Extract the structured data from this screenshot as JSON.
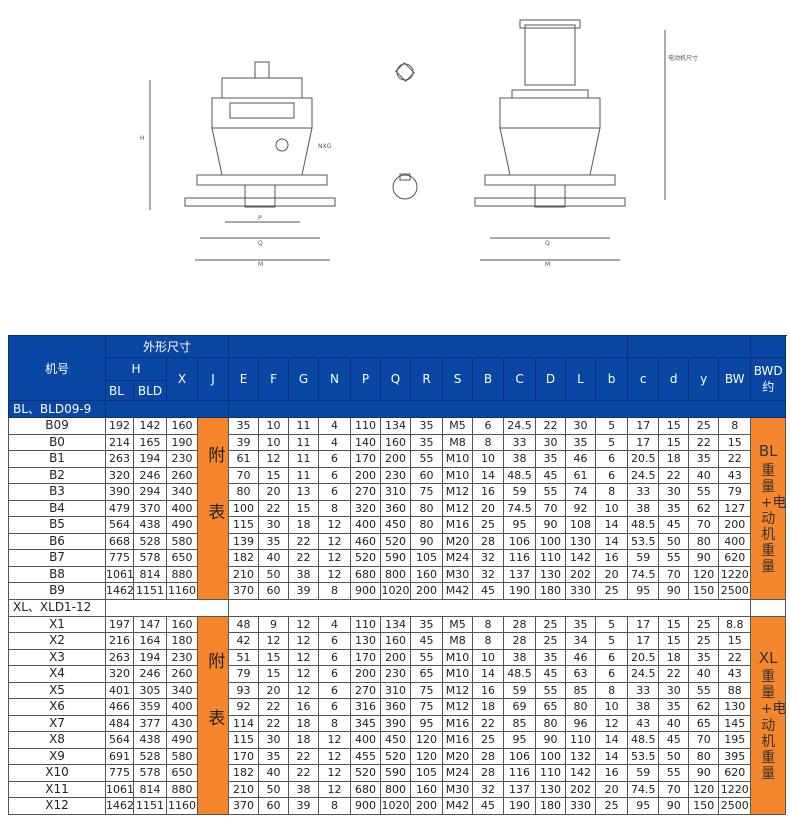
{
  "header": {
    "model": "机号",
    "outline": "外形尺寸",
    "H": "H",
    "BL": "BL",
    "BLD": "BLD",
    "cols": [
      "X",
      "J",
      "E",
      "F",
      "G",
      "N",
      "P",
      "Q",
      "R",
      "S",
      "B",
      "C",
      "D",
      "L",
      "b",
      "c",
      "d",
      "y",
      "BW"
    ],
    "bwd": "BWD",
    "bwd_sub": "约"
  },
  "drawing_labels": {
    "H": "H",
    "E": "E",
    "F": "F",
    "G": "G",
    "NXG": "NXG",
    "P": "P",
    "Q": "Q",
    "M": "M",
    "J": "J",
    "C": "C",
    "D": "D",
    "B": "B",
    "motor_note": "电动机尺寸"
  },
  "fubiao": "附表",
  "sections": [
    {
      "title": "BL、BLD09-9",
      "weight_label": "BL",
      "weight_note": "重量+电动机重量",
      "rows": [
        [
          "B09",
          "192",
          "142",
          "160",
          "35",
          "10",
          "11",
          "4",
          "110",
          "134",
          "35",
          "M5",
          "6",
          "24.5",
          "22",
          "30",
          "5",
          "17",
          "15",
          "25",
          "8"
        ],
        [
          "B0",
          "214",
          "165",
          "190",
          "39",
          "10",
          "11",
          "4",
          "140",
          "160",
          "35",
          "M8",
          "8",
          "33",
          "30",
          "35",
          "5",
          "17",
          "15",
          "22",
          "15"
        ],
        [
          "B1",
          "263",
          "194",
          "230",
          "61",
          "12",
          "11",
          "6",
          "170",
          "200",
          "55",
          "M10",
          "10",
          "38",
          "35",
          "46",
          "6",
          "20.5",
          "18",
          "35",
          "22"
        ],
        [
          "B2",
          "320",
          "246",
          "260",
          "70",
          "15",
          "11",
          "6",
          "200",
          "230",
          "60",
          "M10",
          "14",
          "48.5",
          "45",
          "61",
          "6",
          "24.5",
          "22",
          "40",
          "43"
        ],
        [
          "B3",
          "390",
          "294",
          "340",
          "80",
          "20",
          "13",
          "6",
          "270",
          "310",
          "75",
          "M12",
          "16",
          "59",
          "55",
          "74",
          "8",
          "33",
          "30",
          "55",
          "79"
        ],
        [
          "B4",
          "479",
          "370",
          "400",
          "100",
          "22",
          "15",
          "8",
          "320",
          "360",
          "80",
          "M12",
          "20",
          "74.5",
          "70",
          "92",
          "10",
          "38",
          "35",
          "62",
          "127"
        ],
        [
          "B5",
          "564",
          "438",
          "490",
          "115",
          "30",
          "18",
          "12",
          "400",
          "450",
          "80",
          "M16",
          "25",
          "95",
          "90",
          "108",
          "14",
          "48.5",
          "45",
          "70",
          "200"
        ],
        [
          "B6",
          "668",
          "528",
          "580",
          "139",
          "35",
          "22",
          "12",
          "460",
          "520",
          "90",
          "M20",
          "28",
          "106",
          "100",
          "130",
          "14",
          "53.5",
          "50",
          "80",
          "400"
        ],
        [
          "B7",
          "775",
          "578",
          "650",
          "182",
          "40",
          "22",
          "12",
          "520",
          "590",
          "105",
          "M24",
          "32",
          "116",
          "110",
          "142",
          "16",
          "59",
          "55",
          "90",
          "620"
        ],
        [
          "B8",
          "1061",
          "814",
          "880",
          "210",
          "50",
          "38",
          "12",
          "680",
          "800",
          "160",
          "M30",
          "32",
          "137",
          "130",
          "202",
          "20",
          "74.5",
          "70",
          "120",
          "1220"
        ],
        [
          "B9",
          "1462",
          "1151",
          "1160",
          "370",
          "60",
          "39",
          "8",
          "900",
          "1020",
          "200",
          "M42",
          "45",
          "190",
          "180",
          "330",
          "25",
          "95",
          "90",
          "150",
          "2500"
        ]
      ]
    },
    {
      "title": "XL、XLD1-12",
      "weight_label": "XL",
      "weight_note": "重量+电动机重量",
      "rows": [
        [
          "X1",
          "197",
          "147",
          "160",
          "48",
          "9",
          "12",
          "4",
          "110",
          "134",
          "35",
          "M5",
          "8",
          "28",
          "25",
          "35",
          "5",
          "17",
          "15",
          "25",
          "8.8"
        ],
        [
          "X2",
          "216",
          "164",
          "180",
          "42",
          "12",
          "12",
          "6",
          "130",
          "160",
          "45",
          "M8",
          "8",
          "28",
          "25",
          "34",
          "5",
          "17",
          "15",
          "25",
          "15"
        ],
        [
          "X3",
          "263",
          "194",
          "230",
          "51",
          "15",
          "12",
          "6",
          "170",
          "200",
          "55",
          "M10",
          "10",
          "38",
          "35",
          "46",
          "6",
          "20.5",
          "18",
          "35",
          "22"
        ],
        [
          "X4",
          "320",
          "246",
          "260",
          "79",
          "15",
          "12",
          "6",
          "200",
          "230",
          "65",
          "M10",
          "14",
          "48.5",
          "45",
          "63",
          "6",
          "24.5",
          "22",
          "40",
          "43"
        ],
        [
          "X5",
          "401",
          "305",
          "340",
          "93",
          "20",
          "12",
          "6",
          "270",
          "310",
          "75",
          "M12",
          "16",
          "59",
          "55",
          "85",
          "8",
          "33",
          "30",
          "55",
          "88"
        ],
        [
          "X6",
          "466",
          "359",
          "400",
          "92",
          "22",
          "16",
          "6",
          "316",
          "360",
          "75",
          "M12",
          "18",
          "69",
          "65",
          "80",
          "10",
          "38",
          "35",
          "62",
          "130"
        ],
        [
          "X7",
          "484",
          "377",
          "430",
          "114",
          "22",
          "18",
          "8",
          "345",
          "390",
          "95",
          "M16",
          "22",
          "85",
          "80",
          "96",
          "12",
          "43",
          "40",
          "65",
          "145"
        ],
        [
          "X8",
          "564",
          "438",
          "490",
          "115",
          "30",
          "18",
          "12",
          "400",
          "450",
          "120",
          "M16",
          "25",
          "95",
          "90",
          "110",
          "14",
          "48.5",
          "45",
          "70",
          "195"
        ],
        [
          "X9",
          "691",
          "528",
          "580",
          "170",
          "35",
          "22",
          "12",
          "455",
          "520",
          "120",
          "M20",
          "28",
          "106",
          "100",
          "132",
          "14",
          "53.5",
          "50",
          "80",
          "395"
        ],
        [
          "X10",
          "775",
          "578",
          "650",
          "182",
          "40",
          "22",
          "12",
          "520",
          "590",
          "105",
          "M24",
          "28",
          "116",
          "110",
          "142",
          "16",
          "59",
          "55",
          "90",
          "620"
        ],
        [
          "X11",
          "1061",
          "814",
          "880",
          "210",
          "50",
          "38",
          "12",
          "680",
          "800",
          "160",
          "M30",
          "32",
          "137",
          "130",
          "202",
          "20",
          "74.5",
          "70",
          "120",
          "1220"
        ],
        [
          "X12",
          "1462",
          "1151",
          "1160",
          "370",
          "60",
          "39",
          "8",
          "900",
          "1020",
          "200",
          "M42",
          "45",
          "190",
          "180",
          "330",
          "25",
          "95",
          "90",
          "150",
          "2500"
        ]
      ]
    }
  ],
  "colors": {
    "header_blue": "#0a46a3",
    "accent_orange": "#f5862c"
  }
}
